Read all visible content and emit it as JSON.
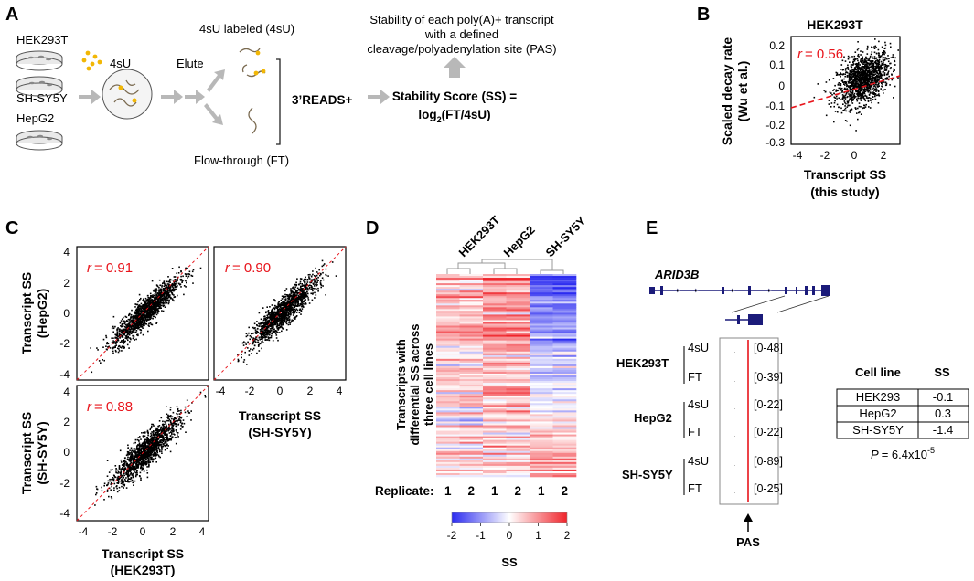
{
  "panelA": {
    "label": "A",
    "cell_lines": [
      "HEK293T",
      "SH-SY5Y",
      "HepG2"
    ],
    "reagent": "4sU",
    "elute": "Elute",
    "labeled": "4sU labeled (4sU)",
    "flow_through": "Flow-through (FT)",
    "reads": "3’READS+",
    "ss_line1": "Stability Score (SS) =",
    "ss_line2_prefix": "log",
    "ss_line2_sub": "2",
    "ss_line2_suffix": "(FT/4sU)",
    "stability_text": [
      "Stability of each poly(A)+ transcript",
      "with a defined",
      "cleavage/polyadenylation site (PAS)"
    ]
  },
  "panelB": {
    "label": "B",
    "title": "HEK293T",
    "r_label": "r",
    "r_value": "= 0.56",
    "ylabel": [
      "Scaled decay rate",
      "(Wu et al.)"
    ],
    "xlabel": [
      "Transcript SS",
      "(this study)"
    ],
    "yticks": [
      "0.2",
      "0.1",
      "0",
      "-0.1",
      "-0.2",
      "-0.3"
    ],
    "xticks": [
      "-4",
      "-2",
      "0",
      "2"
    ]
  },
  "panelC": {
    "label": "C",
    "r_label": "r",
    "r_hepg2_hek": "= 0.91",
    "r_hepg2_sy": "= 0.90",
    "r_sy_hek": "= 0.88",
    "ylabel_top": [
      "Transcript SS",
      "(HepG2)"
    ],
    "ylabel_bottom": [
      "Transcript SS",
      "(SH-SY5Y)"
    ],
    "xlabel_right": [
      "Transcript SS",
      "(SH-SY5Y)"
    ],
    "xlabel_bottom": [
      "Transcript SS",
      "(HEK293T)"
    ],
    "ticks": [
      "4",
      "2",
      "0",
      "-2",
      "-4"
    ],
    "xticks": [
      "-4",
      "-2",
      "0",
      "2",
      "4"
    ]
  },
  "panelD": {
    "label": "D",
    "columns": [
      "HEK293T",
      "HepG2",
      "SH-SY5Y"
    ],
    "ylabel": [
      "Transcripts with",
      "differential SS across",
      "three cell lines"
    ],
    "replicate_label": "Replicate:",
    "replicates": [
      "1",
      "2",
      "1",
      "2",
      "1",
      "2"
    ],
    "colorbar_ticks": [
      "-2",
      "-1",
      "0",
      "1",
      "2"
    ],
    "colorbar_label": "SS",
    "colors": {
      "low": "#2b2bf0",
      "mid": "#ffffff",
      "high": "#f0242b"
    }
  },
  "panelE": {
    "label": "E",
    "gene": "ARID3B",
    "groups": [
      "HEK293T",
      "HepG2",
      "SH-SY5Y"
    ],
    "tracks": [
      {
        "type": "4sU",
        "range": "[0-48]"
      },
      {
        "type": "FT",
        "range": "[0-39]"
      },
      {
        "type": "4sU",
        "range": "[0-22]"
      },
      {
        "type": "FT",
        "range": "[0-22]"
      },
      {
        "type": "4sU",
        "range": "[0-89]"
      },
      {
        "type": "FT",
        "range": "[0-25]"
      }
    ],
    "pas": "PAS",
    "table_header": [
      "Cell line",
      "SS"
    ],
    "table_rows": [
      [
        "HEK293",
        "-0.1"
      ],
      [
        "HepG2",
        "0.3"
      ],
      [
        "SH-SY5Y",
        "-1.4"
      ]
    ],
    "p_label": "P",
    "p_value": "= 6.4x10",
    "p_exp": "-5"
  }
}
